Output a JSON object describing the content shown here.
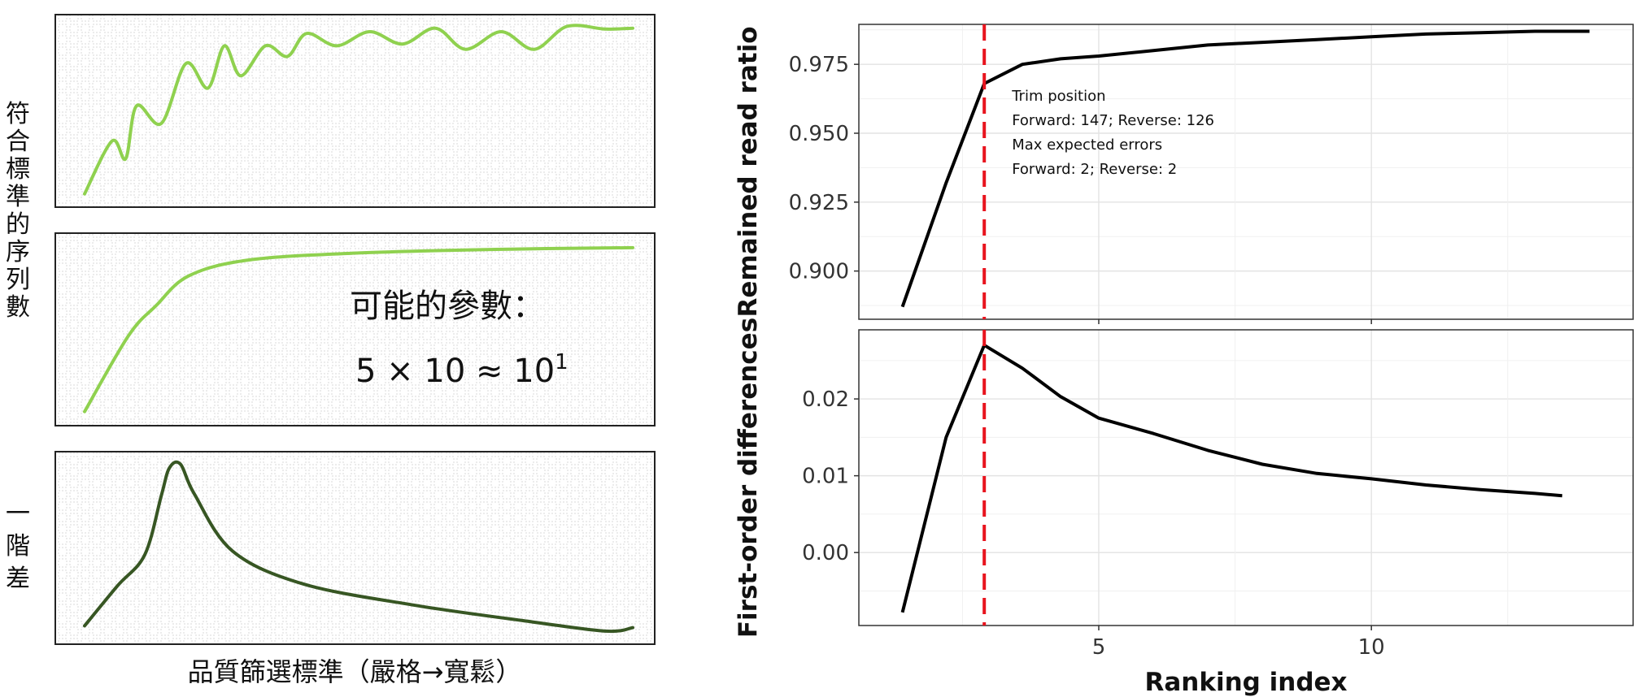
{
  "left": {
    "ylabel_top": "符合標準的序列數",
    "ylabel_bottom": "一階差",
    "xlabel": "品質篩選標準（嚴格→寬鬆）",
    "formula_title": "可能的參數：",
    "formula_value": "5 × 10 ≈ 10",
    "formula_exp": "1",
    "colors": {
      "light": "#8fd14f",
      "dark": "#375623",
      "frame": "#222222",
      "grid": "#d9d9d9"
    },
    "curves": {
      "oscillating": [
        [
          0,
          0.02
        ],
        [
          0.05,
          0.32
        ],
        [
          0.075,
          0.22
        ],
        [
          0.095,
          0.52
        ],
        [
          0.14,
          0.42
        ],
        [
          0.185,
          0.76
        ],
        [
          0.225,
          0.62
        ],
        [
          0.255,
          0.86
        ],
        [
          0.285,
          0.69
        ],
        [
          0.33,
          0.86
        ],
        [
          0.37,
          0.8
        ],
        [
          0.405,
          0.93
        ],
        [
          0.46,
          0.86
        ],
        [
          0.52,
          0.94
        ],
        [
          0.58,
          0.87
        ],
        [
          0.64,
          0.96
        ],
        [
          0.695,
          0.84
        ],
        [
          0.76,
          0.94
        ],
        [
          0.82,
          0.84
        ],
        [
          0.88,
          0.97
        ],
        [
          0.95,
          0.955
        ],
        [
          1,
          0.96
        ]
      ],
      "saturating": [
        [
          0,
          0.02
        ],
        [
          0.08,
          0.45
        ],
        [
          0.13,
          0.62
        ],
        [
          0.19,
          0.79
        ],
        [
          0.3,
          0.88
        ],
        [
          0.5,
          0.92
        ],
        [
          0.75,
          0.94
        ],
        [
          1,
          0.95
        ]
      ],
      "first_difference": [
        [
          0,
          0.04
        ],
        [
          0.06,
          0.27
        ],
        [
          0.11,
          0.45
        ],
        [
          0.14,
          0.79
        ],
        [
          0.155,
          0.95
        ],
        [
          0.175,
          0.97
        ],
        [
          0.2,
          0.8
        ],
        [
          0.27,
          0.47
        ],
        [
          0.4,
          0.28
        ],
        [
          0.6,
          0.16
        ],
        [
          0.8,
          0.07
        ],
        [
          0.95,
          0.01
        ],
        [
          1,
          0.03
        ]
      ]
    }
  },
  "chart_data": [
    {
      "type": "line",
      "title": "",
      "xlabel": "",
      "ylabel": "Remained read ratio",
      "x": [
        1.4,
        2.2,
        2.9,
        3.6,
        4.3,
        5.0,
        6.0,
        7.0,
        8.0,
        9.0,
        10.0,
        11.0,
        12.0,
        13.0,
        14.0
      ],
      "series": [
        {
          "name": "",
          "values": [
            0.887,
            0.932,
            0.968,
            0.975,
            0.977,
            0.978,
            0.98,
            0.982,
            0.983,
            0.984,
            0.985,
            0.986,
            0.9865,
            0.987,
            0.987
          ]
        }
      ],
      "xlim": [
        0.6,
        14.8
      ],
      "ylim": [
        0.8825,
        0.9895
      ],
      "yticks": [
        0.9,
        0.925,
        0.95,
        0.975
      ],
      "ytick_labels": [
        "0.900",
        "0.925",
        "0.950",
        "0.975"
      ],
      "xticks": [
        5,
        10
      ],
      "vline": {
        "x": 2.9,
        "color": "#e8141e"
      },
      "annotation": [
        "Trim position",
        "Forward: 147; Reverse: 126",
        "Max expected errors",
        "Forward: 2; Reverse: 2"
      ],
      "grid": true
    },
    {
      "type": "line",
      "title": "",
      "xlabel": "Ranking index",
      "ylabel": "First-order differences",
      "x": [
        1.4,
        2.2,
        2.9,
        3.6,
        4.3,
        5.0,
        6.0,
        7.0,
        8.0,
        9.0,
        10.0,
        11.0,
        12.0,
        13.0,
        13.5
      ],
      "series": [
        {
          "name": "",
          "values": [
            -0.0078,
            0.015,
            0.027,
            0.024,
            0.0203,
            0.0175,
            0.0155,
            0.0133,
            0.0115,
            0.0103,
            0.0096,
            0.0088,
            0.0082,
            0.0077,
            0.0074
          ]
        }
      ],
      "xlim": [
        0.6,
        14.8
      ],
      "ylim": [
        -0.0095,
        0.029
      ],
      "yticks": [
        0.0,
        0.01,
        0.02
      ],
      "ytick_labels": [
        "0.00",
        "0.01",
        "0.02"
      ],
      "xticks": [
        5,
        10
      ],
      "xtick_labels": [
        "5",
        "10"
      ],
      "vline": {
        "x": 2.9,
        "color": "#e8141e"
      },
      "grid": true
    }
  ]
}
